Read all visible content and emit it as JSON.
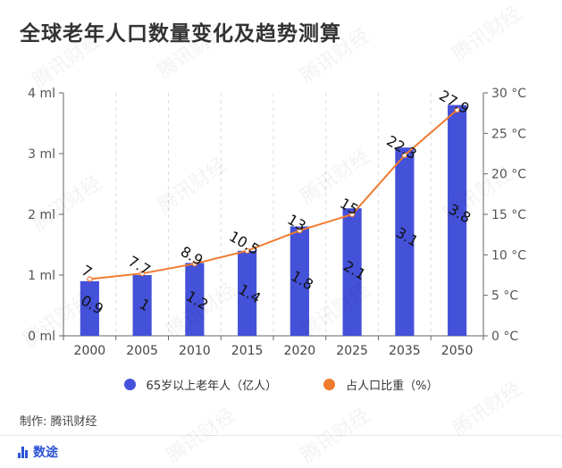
{
  "title": "全球老年人口数量变化及趋势测算",
  "credit": "制作: 腾讯财经",
  "brand": "数途",
  "watermark_text": "腾讯财经",
  "colors": {
    "bar": "#4451d9",
    "line": "#f07a2e",
    "axis": "#666666",
    "grid": "#dddddd"
  },
  "legend": {
    "items": [
      {
        "label": "65岁以上老年人（亿人）",
        "color": "#4451d9"
      },
      {
        "label": "占人口比重（%）",
        "color": "#f07a2e"
      }
    ]
  },
  "chart_data": {
    "type": "bar",
    "categories": [
      "2000",
      "2005",
      "2010",
      "2015",
      "2020",
      "2025",
      "2035",
      "2050"
    ],
    "series": [
      {
        "name": "65岁以上老年人（亿人）",
        "type": "bar",
        "axis": "left",
        "values": [
          0.9,
          1,
          1.2,
          1.4,
          1.8,
          2.1,
          3.1,
          3.8
        ]
      },
      {
        "name": "占人口比重（%）",
        "type": "line",
        "axis": "right",
        "values": [
          7,
          7.7,
          8.9,
          10.5,
          13,
          15,
          22.3,
          27.9
        ]
      }
    ],
    "y_left": {
      "ticks": [
        0,
        1,
        2,
        3,
        4
      ],
      "tick_labels": [
        "0 ml",
        "1 ml",
        "2 ml",
        "3 ml",
        "4 ml"
      ],
      "range": [
        0,
        4
      ]
    },
    "y_right": {
      "ticks": [
        0,
        5,
        10,
        15,
        20,
        25,
        30
      ],
      "tick_labels": [
        "0 °C",
        "5 °C",
        "10 °C",
        "15 °C",
        "20 °C",
        "25 °C",
        "30 °C"
      ],
      "range": [
        0,
        30
      ]
    },
    "grid": "vertical dashed",
    "legend_position": "bottom"
  }
}
